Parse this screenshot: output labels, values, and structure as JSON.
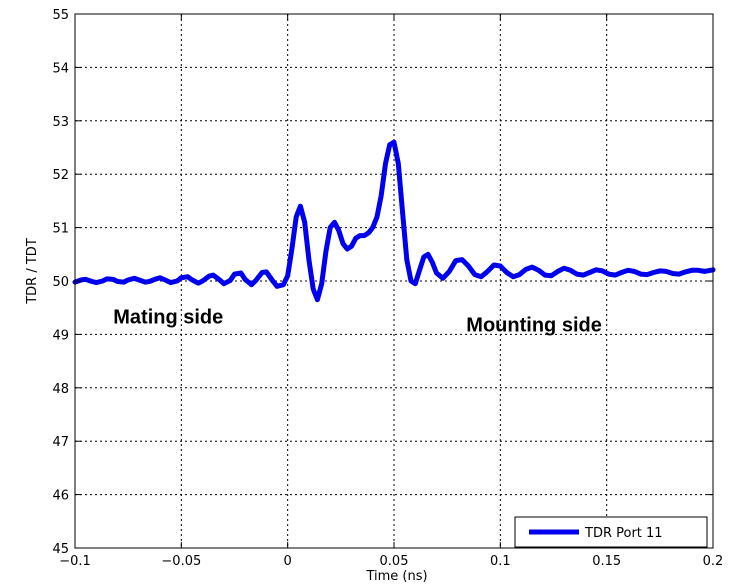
{
  "chart_data": {
    "type": "line",
    "xlabel": "Time (ns)",
    "ylabel": "TDR / TDT",
    "xlim": [
      -0.1,
      0.2
    ],
    "ylim": [
      45,
      55
    ],
    "xticks": [
      -0.1,
      -0.05,
      0,
      0.05,
      0.1,
      0.15,
      0.2
    ],
    "xtick_labels": [
      "−0.1",
      "−0.05",
      "0",
      "0.05",
      "0.1",
      "0.15",
      "0.2"
    ],
    "yticks": [
      45,
      46,
      47,
      48,
      49,
      50,
      51,
      52,
      53,
      54,
      55
    ],
    "ytick_labels": [
      "45",
      "46",
      "47",
      "48",
      "49",
      "50",
      "51",
      "52",
      "53",
      "54",
      "55"
    ],
    "grid": true,
    "legend_position": "bottom-right",
    "annotations": [
      {
        "text": "Mating side",
        "x": -0.082,
        "y": 49.2
      },
      {
        "text": "Mounting side",
        "x": 0.084,
        "y": 49.05
      }
    ],
    "series": [
      {
        "name": "TDR Port 11",
        "color": "#0000ee",
        "x": [
          -0.1,
          -0.097,
          -0.095,
          -0.092,
          -0.09,
          -0.087,
          -0.085,
          -0.082,
          -0.08,
          -0.077,
          -0.075,
          -0.072,
          -0.07,
          -0.067,
          -0.065,
          -0.062,
          -0.06,
          -0.057,
          -0.055,
          -0.052,
          -0.05,
          -0.047,
          -0.045,
          -0.042,
          -0.04,
          -0.037,
          -0.035,
          -0.032,
          -0.03,
          -0.027,
          -0.025,
          -0.022,
          -0.02,
          -0.017,
          -0.015,
          -0.012,
          -0.01,
          -0.007,
          -0.005,
          -0.002,
          0.0,
          0.002,
          0.004,
          0.006,
          0.008,
          0.01,
          0.012,
          0.014,
          0.016,
          0.018,
          0.02,
          0.022,
          0.024,
          0.026,
          0.028,
          0.03,
          0.032,
          0.034,
          0.036,
          0.038,
          0.04,
          0.042,
          0.044,
          0.046,
          0.048,
          0.05,
          0.052,
          0.054,
          0.056,
          0.058,
          0.06,
          0.062,
          0.064,
          0.066,
          0.068,
          0.07,
          0.073,
          0.076,
          0.079,
          0.082,
          0.085,
          0.088,
          0.091,
          0.094,
          0.097,
          0.1,
          0.103,
          0.106,
          0.109,
          0.112,
          0.115,
          0.118,
          0.121,
          0.124,
          0.127,
          0.13,
          0.133,
          0.136,
          0.139,
          0.142,
          0.145,
          0.148,
          0.151,
          0.154,
          0.157,
          0.16,
          0.163,
          0.166,
          0.169,
          0.172,
          0.175,
          0.178,
          0.181,
          0.184,
          0.187,
          0.19,
          0.193,
          0.196,
          0.199,
          0.2
        ],
        "y": [
          49.98,
          50.02,
          50.03,
          49.99,
          49.97,
          50.0,
          50.04,
          50.03,
          49.99,
          49.98,
          50.02,
          50.05,
          50.02,
          49.98,
          49.99,
          50.04,
          50.06,
          50.01,
          49.97,
          50.0,
          50.06,
          50.08,
          50.02,
          49.96,
          50.0,
          50.09,
          50.11,
          50.02,
          49.95,
          50.01,
          50.13,
          50.15,
          50.03,
          49.93,
          50.01,
          50.16,
          50.17,
          50.0,
          49.9,
          49.93,
          50.1,
          50.6,
          51.2,
          51.4,
          51.1,
          50.4,
          49.85,
          49.65,
          49.95,
          50.55,
          51.0,
          51.1,
          50.95,
          50.7,
          50.6,
          50.65,
          50.8,
          50.85,
          50.85,
          50.9,
          51.0,
          51.2,
          51.6,
          52.2,
          52.55,
          52.6,
          52.2,
          51.3,
          50.4,
          50.0,
          49.95,
          50.2,
          50.45,
          50.5,
          50.35,
          50.15,
          50.05,
          50.18,
          50.38,
          50.4,
          50.28,
          50.12,
          50.08,
          50.18,
          50.3,
          50.28,
          50.16,
          50.08,
          50.12,
          50.22,
          50.26,
          50.2,
          50.11,
          50.1,
          50.18,
          50.24,
          50.2,
          50.13,
          50.11,
          50.16,
          50.21,
          50.19,
          50.13,
          50.11,
          50.16,
          50.2,
          50.18,
          50.13,
          50.12,
          50.16,
          50.19,
          50.18,
          50.14,
          50.13,
          50.17,
          50.2,
          50.2,
          50.18,
          50.2,
          50.21
        ]
      }
    ]
  }
}
